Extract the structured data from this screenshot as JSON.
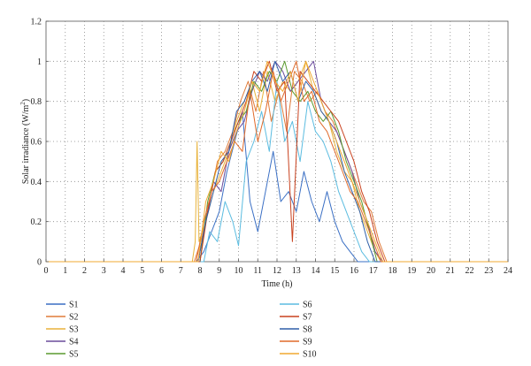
{
  "chart_data": {
    "type": "line",
    "xlabel": "Time (h)",
    "ylabel_main": "Solar irradiance (W/m",
    "ylabel_sup": "2",
    "ylabel_end": ")",
    "xlim": [
      0,
      24
    ],
    "ylim": [
      0,
      1.2
    ],
    "xticks": [
      "0",
      "1",
      "2",
      "3",
      "4",
      "5",
      "6",
      "7",
      "8",
      "9",
      "10",
      "11",
      "12",
      "13",
      "14",
      "15",
      "16",
      "17",
      "18",
      "19",
      "20",
      "21",
      "22",
      "23",
      "24"
    ],
    "yticks": [
      "0",
      "0.2",
      "0.4",
      "0.6",
      "0.8",
      "1",
      "1.2"
    ],
    "grid": true,
    "legend_placement": "bottom, two columns",
    "series": [
      {
        "name": "S1",
        "color": "#3a6fc4",
        "x": [
          7.8,
          8.2,
          8.6,
          9.0,
          9.4,
          9.8,
          10.2,
          10.6,
          11.0,
          11.4,
          11.8,
          12.2,
          12.6,
          13.0,
          13.4,
          13.8,
          14.2,
          14.6,
          15.0,
          15.4,
          15.8,
          16.2,
          16.6
        ],
        "y": [
          0,
          0.05,
          0.15,
          0.25,
          0.45,
          0.6,
          0.75,
          0.3,
          0.15,
          0.35,
          0.55,
          0.3,
          0.35,
          0.25,
          0.45,
          0.3,
          0.2,
          0.35,
          0.2,
          0.1,
          0.05,
          0,
          0
        ]
      },
      {
        "name": "S2",
        "color": "#e07b39",
        "x": [
          7.7,
          8.1,
          8.5,
          8.9,
          9.3,
          9.7,
          10.1,
          10.5,
          10.9,
          11.3,
          11.7,
          12.1,
          12.5,
          12.9,
          13.3,
          13.7,
          14.1,
          14.5,
          14.9,
          15.3,
          15.7,
          16.1,
          16.5,
          16.9,
          17.3,
          17.7
        ],
        "y": [
          0,
          0.12,
          0.3,
          0.5,
          0.55,
          0.65,
          0.8,
          0.9,
          0.75,
          0.95,
          0.7,
          0.85,
          0.65,
          0.95,
          0.9,
          0.8,
          0.85,
          0.75,
          0.7,
          0.6,
          0.5,
          0.4,
          0.3,
          0.25,
          0.1,
          0
        ]
      },
      {
        "name": "S3",
        "color": "#e8b23a",
        "x": [
          7.6,
          7.75,
          7.85,
          7.95,
          8.3,
          8.7,
          9.1,
          9.5,
          9.9,
          10.3,
          10.7,
          11.1,
          11.5,
          11.9,
          12.3,
          12.7,
          13.1,
          13.5,
          13.9,
          14.3,
          14.7,
          15.1,
          15.5,
          15.9,
          16.3,
          16.7,
          17.1,
          17.4
        ],
        "y": [
          0,
          0.1,
          0.6,
          0.1,
          0.2,
          0.35,
          0.45,
          0.55,
          0.7,
          0.8,
          0.9,
          0.75,
          0.95,
          0.8,
          0.9,
          0.85,
          0.9,
          1.0,
          0.85,
          0.75,
          0.7,
          0.55,
          0.45,
          0.4,
          0.25,
          0.15,
          0.05,
          0
        ]
      },
      {
        "name": "S4",
        "color": "#6a4c9c",
        "x": [
          7.9,
          8.3,
          8.7,
          9.1,
          9.5,
          9.9,
          10.3,
          10.7,
          11.1,
          11.5,
          11.9,
          12.3,
          12.7,
          13.1,
          13.5,
          13.9,
          14.3,
          14.7,
          15.1,
          15.5,
          15.9,
          16.3,
          16.7,
          17.1,
          17.5
        ],
        "y": [
          0,
          0.2,
          0.4,
          0.35,
          0.55,
          0.65,
          0.7,
          0.85,
          0.95,
          0.9,
          1.0,
          0.95,
          0.85,
          0.9,
          0.95,
          1.0,
          0.8,
          0.7,
          0.65,
          0.55,
          0.45,
          0.3,
          0.2,
          0.05,
          0
        ]
      },
      {
        "name": "S5",
        "color": "#5a9a2e",
        "x": [
          8.0,
          8.4,
          8.8,
          9.2,
          9.6,
          10.0,
          10.4,
          10.8,
          11.2,
          11.6,
          12.0,
          12.4,
          12.8,
          13.2,
          13.6,
          14.0,
          14.4,
          14.8,
          15.2,
          15.6,
          16.0,
          16.4,
          16.8,
          17.2
        ],
        "y": [
          0,
          0.3,
          0.45,
          0.5,
          0.6,
          0.7,
          0.75,
          0.9,
          0.85,
          0.95,
          0.9,
          1.0,
          0.85,
          0.8,
          0.85,
          0.75,
          0.7,
          0.75,
          0.65,
          0.5,
          0.4,
          0.3,
          0.15,
          0
        ]
      },
      {
        "name": "S6",
        "color": "#5bbce0",
        "x": [
          8.2,
          8.5,
          8.9,
          9.3,
          9.7,
          10.0,
          10.4,
          10.8,
          11.2,
          11.6,
          12.0,
          12.4,
          12.8,
          13.2,
          13.6,
          14.0,
          14.4,
          14.8,
          15.2,
          15.6,
          16.0,
          16.4,
          16.8
        ],
        "y": [
          0,
          0.15,
          0.1,
          0.3,
          0.2,
          0.08,
          0.5,
          0.6,
          0.75,
          0.55,
          0.9,
          0.6,
          0.7,
          0.5,
          0.8,
          0.65,
          0.6,
          0.5,
          0.35,
          0.25,
          0.15,
          0.05,
          0
        ]
      },
      {
        "name": "S7",
        "color": "#c9421f",
        "x": [
          8.0,
          8.4,
          8.8,
          9.2,
          9.6,
          10.0,
          10.4,
          10.8,
          11.2,
          11.6,
          12.0,
          12.4,
          12.8,
          13.2,
          13.6,
          14.0,
          14.4,
          14.8,
          15.2,
          15.6,
          16.0,
          16.4,
          16.8,
          17.2,
          17.6
        ],
        "y": [
          0,
          0.25,
          0.45,
          0.5,
          0.6,
          0.7,
          0.8,
          0.95,
          0.9,
          1.0,
          0.85,
          0.9,
          0.1,
          0.95,
          0.9,
          0.85,
          0.8,
          0.75,
          0.7,
          0.6,
          0.5,
          0.35,
          0.25,
          0.1,
          0
        ]
      },
      {
        "name": "S8",
        "color": "#2e5ea8",
        "x": [
          7.9,
          8.3,
          8.7,
          9.1,
          9.5,
          9.9,
          10.3,
          10.7,
          11.1,
          11.5,
          11.9,
          12.3,
          12.7,
          13.1,
          13.5,
          13.9,
          14.3,
          14.7,
          15.1,
          15.5,
          15.9,
          16.3,
          16.7,
          17.1
        ],
        "y": [
          0,
          0.2,
          0.35,
          0.5,
          0.55,
          0.75,
          0.8,
          0.9,
          0.95,
          0.85,
          1.0,
          0.9,
          0.95,
          0.8,
          0.9,
          0.85,
          0.75,
          0.7,
          0.6,
          0.45,
          0.35,
          0.25,
          0.1,
          0
        ]
      },
      {
        "name": "S9",
        "color": "#e06a2a",
        "x": [
          7.8,
          8.2,
          8.6,
          9.0,
          9.4,
          9.8,
          10.2,
          10.6,
          11.0,
          11.4,
          11.8,
          12.2,
          12.6,
          13.0,
          13.4,
          13.8,
          14.2,
          14.6,
          15.0,
          15.4,
          15.8,
          16.2,
          16.6,
          17.0,
          17.4
        ],
        "y": [
          0,
          0.2,
          0.35,
          0.4,
          0.5,
          0.6,
          0.55,
          0.85,
          0.6,
          0.75,
          0.95,
          0.8,
          0.9,
          1.0,
          0.8,
          0.85,
          0.7,
          0.65,
          0.55,
          0.45,
          0.35,
          0.3,
          0.2,
          0.1,
          0
        ]
      },
      {
        "name": "S10",
        "color": "#f0a830",
        "x": [
          7.9,
          8.3,
          8.7,
          9.1,
          9.5,
          9.9,
          10.3,
          10.7,
          11.1,
          11.5,
          11.9,
          12.3,
          12.7,
          13.1,
          13.5,
          13.9,
          14.3,
          14.7,
          15.1,
          15.5,
          15.9,
          16.3,
          16.7,
          17.1,
          17.5
        ],
        "y": [
          0,
          0.3,
          0.4,
          0.55,
          0.5,
          0.65,
          0.75,
          0.9,
          0.85,
          1.0,
          0.9,
          0.85,
          0.95,
          0.8,
          1.0,
          0.9,
          0.8,
          0.7,
          0.6,
          0.5,
          0.4,
          0.3,
          0.2,
          0.1,
          0
        ]
      }
    ]
  }
}
